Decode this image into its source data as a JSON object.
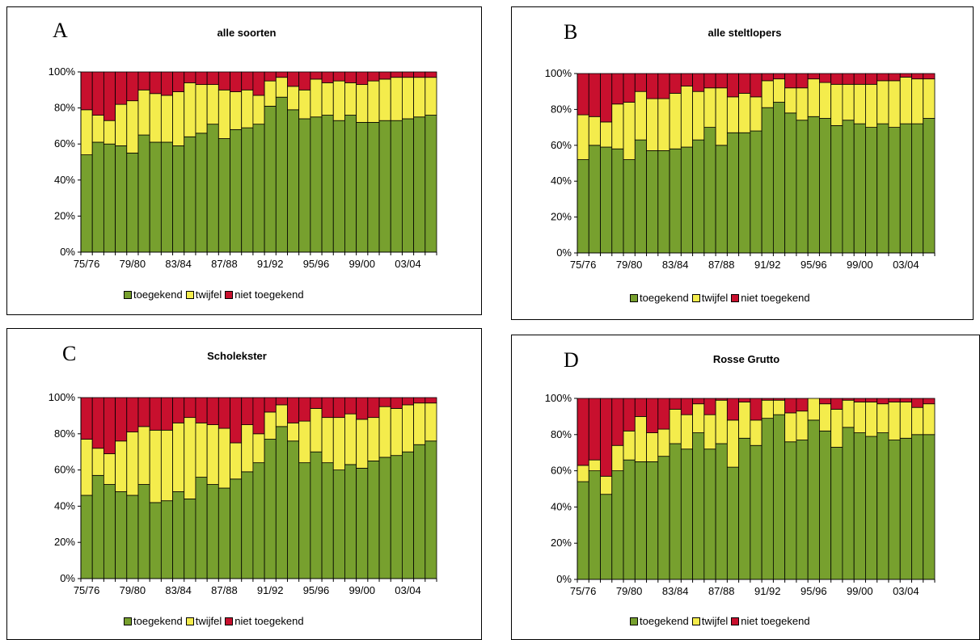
{
  "chart_data": [
    {
      "type": "bar",
      "stacked": "percent",
      "label": "A",
      "title": "alle soorten",
      "categories": [
        "75/76",
        "76/77",
        "77/78",
        "78/79",
        "79/80",
        "80/81",
        "81/82",
        "82/83",
        "83/84",
        "84/85",
        "85/86",
        "86/87",
        "87/88",
        "88/89",
        "89/90",
        "90/91",
        "91/92",
        "92/93",
        "93/94",
        "94/95",
        "95/96",
        "96/97",
        "97/98",
        "98/99",
        "99/00",
        "00/01",
        "01/02",
        "02/03",
        "03/04",
        "04/05",
        "05/06"
      ],
      "tick_labels": [
        "75/76",
        "79/80",
        "83/84",
        "87/88",
        "91/92",
        "95/96",
        "99/00",
        "03/04"
      ],
      "series": [
        {
          "name": "toegekend",
          "values": [
            54,
            61,
            60,
            59,
            55,
            65,
            61,
            61,
            59,
            64,
            66,
            71,
            63,
            68,
            69,
            71,
            81,
            86,
            79,
            74,
            75,
            76,
            73,
            76,
            72,
            72,
            73,
            73,
            74,
            75,
            76
          ]
        },
        {
          "name": "twijfel",
          "values": [
            25,
            15,
            13,
            23,
            29,
            25,
            27,
            26,
            30,
            30,
            27,
            22,
            27,
            21,
            21,
            16,
            14,
            11,
            13,
            16,
            21,
            18,
            22,
            18,
            21,
            23,
            23,
            24,
            23,
            22,
            21
          ]
        },
        {
          "name": "niet toegekend",
          "values": [
            21,
            24,
            27,
            18,
            16,
            10,
            12,
            13,
            11,
            6,
            7,
            7,
            10,
            11,
            10,
            13,
            5,
            3,
            8,
            10,
            4,
            6,
            5,
            6,
            7,
            5,
            4,
            3,
            3,
            3,
            3
          ]
        }
      ],
      "ylim": [
        0,
        100
      ],
      "yticks": [
        "0%",
        "20%",
        "40%",
        "60%",
        "80%",
        "100%"
      ],
      "legend": "bottom"
    },
    {
      "type": "bar",
      "stacked": "percent",
      "label": "B",
      "title": "alle steltlopers",
      "categories": [
        "75/76",
        "76/77",
        "77/78",
        "78/79",
        "79/80",
        "80/81",
        "81/82",
        "82/83",
        "83/84",
        "84/85",
        "85/86",
        "86/87",
        "87/88",
        "88/89",
        "89/90",
        "90/91",
        "91/92",
        "92/93",
        "93/94",
        "94/95",
        "95/96",
        "96/97",
        "97/98",
        "98/99",
        "99/00",
        "00/01",
        "01/02",
        "02/03",
        "03/04",
        "04/05",
        "05/06"
      ],
      "tick_labels": [
        "75/76",
        "79/80",
        "83/84",
        "87/88",
        "91/92",
        "95/96",
        "99/00",
        "03/04"
      ],
      "series": [
        {
          "name": "toegekend",
          "values": [
            52,
            60,
            59,
            58,
            52,
            63,
            57,
            57,
            58,
            59,
            63,
            70,
            60,
            67,
            67,
            68,
            81,
            84,
            78,
            74,
            76,
            75,
            71,
            74,
            72,
            70,
            72,
            70,
            72,
            72,
            75
          ]
        },
        {
          "name": "twijfel",
          "values": [
            25,
            16,
            14,
            25,
            32,
            27,
            29,
            29,
            31,
            34,
            27,
            22,
            32,
            20,
            22,
            19,
            15,
            13,
            14,
            18,
            21,
            20,
            23,
            20,
            22,
            24,
            24,
            26,
            26,
            25,
            22
          ]
        },
        {
          "name": "niet toegekend",
          "values": [
            23,
            24,
            27,
            17,
            16,
            10,
            14,
            14,
            11,
            7,
            10,
            8,
            8,
            13,
            11,
            13,
            4,
            3,
            8,
            8,
            3,
            5,
            6,
            6,
            6,
            6,
            4,
            4,
            2,
            3,
            3
          ]
        }
      ],
      "ylim": [
        0,
        100
      ],
      "yticks": [
        "0%",
        "20%",
        "40%",
        "60%",
        "80%",
        "100%"
      ],
      "legend": "bottom"
    },
    {
      "type": "bar",
      "stacked": "percent",
      "label": "C",
      "title": "Scholekster",
      "categories": [
        "75/76",
        "76/77",
        "77/78",
        "78/79",
        "79/80",
        "80/81",
        "81/82",
        "82/83",
        "83/84",
        "84/85",
        "85/86",
        "86/87",
        "87/88",
        "88/89",
        "89/90",
        "90/91",
        "91/92",
        "92/93",
        "93/94",
        "94/95",
        "95/96",
        "96/97",
        "97/98",
        "98/99",
        "99/00",
        "00/01",
        "01/02",
        "02/03",
        "03/04",
        "04/05",
        "05/06"
      ],
      "tick_labels": [
        "75/76",
        "79/80",
        "83/84",
        "87/88",
        "91/92",
        "95/96",
        "99/00",
        "03/04"
      ],
      "series": [
        {
          "name": "toegekend",
          "values": [
            46,
            57,
            52,
            48,
            46,
            52,
            42,
            43,
            48,
            44,
            56,
            52,
            50,
            55,
            59,
            64,
            77,
            84,
            76,
            64,
            70,
            64,
            60,
            63,
            61,
            65,
            67,
            68,
            70,
            74,
            76
          ]
        },
        {
          "name": "twijfel",
          "values": [
            31,
            15,
            17,
            28,
            35,
            32,
            40,
            39,
            38,
            45,
            30,
            33,
            33,
            20,
            26,
            16,
            15,
            12,
            10,
            23,
            24,
            25,
            29,
            28,
            27,
            24,
            28,
            26,
            26,
            23,
            21
          ]
        },
        {
          "name": "niet toegekend",
          "values": [
            23,
            28,
            31,
            24,
            19,
            16,
            18,
            18,
            14,
            11,
            14,
            15,
            17,
            25,
            15,
            20,
            8,
            4,
            14,
            13,
            6,
            11,
            11,
            9,
            12,
            11,
            5,
            6,
            4,
            3,
            3
          ]
        }
      ],
      "ylim": [
        0,
        100
      ],
      "yticks": [
        "0%",
        "20%",
        "40%",
        "60%",
        "80%",
        "100%"
      ],
      "legend": "bottom"
    },
    {
      "type": "bar",
      "stacked": "percent",
      "label": "D",
      "title": "Rosse Grutto",
      "categories": [
        "75/76",
        "76/77",
        "77/78",
        "78/79",
        "79/80",
        "80/81",
        "81/82",
        "82/83",
        "83/84",
        "84/85",
        "85/86",
        "86/87",
        "87/88",
        "88/89",
        "89/90",
        "90/91",
        "91/92",
        "92/93",
        "93/94",
        "94/95",
        "95/96",
        "96/97",
        "97/98",
        "98/99",
        "99/00",
        "00/01",
        "01/02",
        "02/03",
        "03/04",
        "04/05",
        "05/06"
      ],
      "tick_labels": [
        "75/76",
        "79/80",
        "83/84",
        "87/88",
        "91/92",
        "95/96",
        "99/00",
        "03/04"
      ],
      "series": [
        {
          "name": "toegekend",
          "values": [
            54,
            60,
            47,
            60,
            66,
            65,
            65,
            68,
            75,
            72,
            81,
            72,
            75,
            62,
            78,
            74,
            89,
            91,
            76,
            77,
            88,
            82,
            73,
            84,
            81,
            79,
            81,
            77,
            78,
            80,
            80
          ]
        },
        {
          "name": "twijfel",
          "values": [
            9,
            6,
            10,
            14,
            16,
            25,
            16,
            15,
            19,
            19,
            16,
            19,
            24,
            26,
            20,
            14,
            10,
            8,
            16,
            16,
            12,
            15,
            21,
            15,
            17,
            19,
            16,
            21,
            20,
            15,
            17
          ]
        },
        {
          "name": "niet toegekend",
          "values": [
            37,
            34,
            43,
            26,
            18,
            10,
            19,
            17,
            6,
            9,
            3,
            9,
            1,
            12,
            2,
            12,
            1,
            1,
            8,
            7,
            0,
            3,
            6,
            1,
            2,
            2,
            3,
            2,
            2,
            5,
            3
          ]
        }
      ],
      "ylim": [
        0,
        100
      ],
      "yticks": [
        "0%",
        "20%",
        "40%",
        "60%",
        "80%",
        "100%"
      ],
      "legend": "bottom"
    }
  ],
  "colors": {
    "toegekend": "#77a02e",
    "twijfel": "#f4ec4c",
    "niet toegekend": "#c8102e"
  },
  "legend_labels": [
    "toegekend",
    "twijfel",
    "niet toegekend"
  ]
}
